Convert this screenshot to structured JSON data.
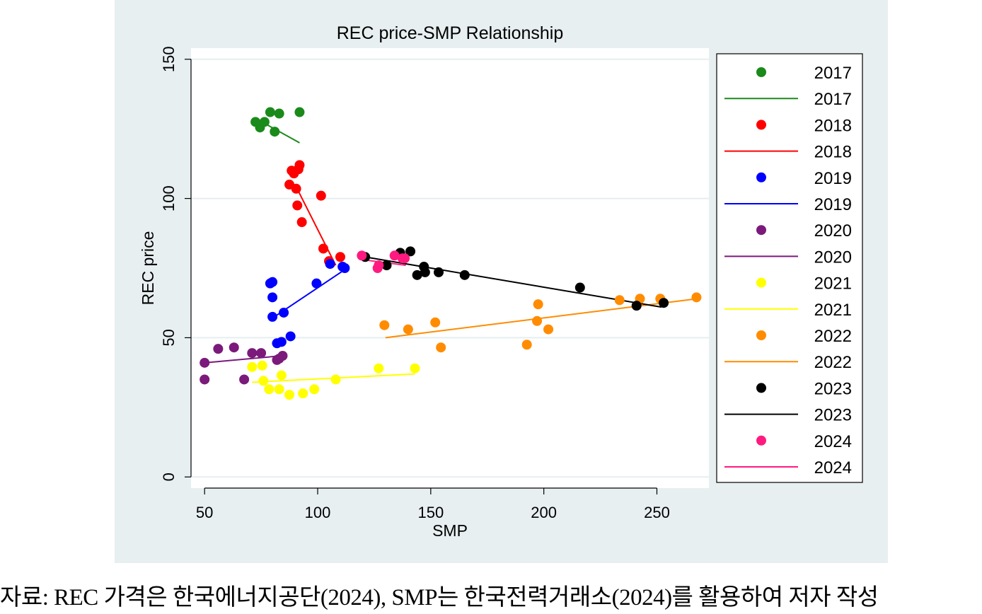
{
  "source_note": "자료: REC 가격은 한국에너지공단(2024), SMP는 한국전력거래소(2024)를 활용하여 저자 작성",
  "chart_data": {
    "type": "scatter",
    "title": "REC price-SMP Relationship",
    "xlabel": "SMP",
    "ylabel": "REC price",
    "xlim": [
      44,
      273
    ],
    "ylim": [
      -4,
      154
    ],
    "xticks": [
      50,
      100,
      150,
      200,
      250
    ],
    "yticks": [
      0,
      50,
      100,
      150
    ],
    "grid": true,
    "legend_position": "right",
    "series": [
      {
        "name": "2017",
        "color": "#1a8a1a",
        "points": [
          [
            72.5,
            127.5
          ],
          [
            74.5,
            125.5
          ],
          [
            76.5,
            127.5
          ],
          [
            79,
            131
          ],
          [
            81,
            124
          ],
          [
            83,
            130.5
          ],
          [
            92,
            131
          ]
        ],
        "fit": [
          [
            72,
            129
          ],
          [
            92,
            120
          ]
        ]
      },
      {
        "name": "2018",
        "color": "#ff0000",
        "points": [
          [
            87.5,
            105
          ],
          [
            88.5,
            110
          ],
          [
            89.5,
            109
          ],
          [
            90.5,
            103.5
          ],
          [
            91,
            97.5
          ],
          [
            91.5,
            110.5
          ],
          [
            92,
            112
          ],
          [
            93,
            91.5
          ],
          [
            101.5,
            101
          ],
          [
            102.5,
            82
          ],
          [
            105,
            77.5
          ],
          [
            110,
            79
          ]
        ],
        "fit": [
          [
            90,
            105
          ],
          [
            108,
            76
          ]
        ]
      },
      {
        "name": "2019",
        "color": "#0000ff",
        "points": [
          [
            79,
            69.5
          ],
          [
            80,
            70
          ],
          [
            80,
            64.5
          ],
          [
            80,
            57.5
          ],
          [
            82,
            48
          ],
          [
            84,
            48.5
          ],
          [
            85,
            59
          ],
          [
            88,
            50.5
          ],
          [
            99.5,
            69.5
          ],
          [
            105.5,
            76.5
          ],
          [
            111,
            75.5
          ],
          [
            112,
            75
          ]
        ],
        "fit": [
          [
            79,
            56.5
          ],
          [
            113,
            75
          ]
        ]
      },
      {
        "name": "2020",
        "color": "#7b1a7b",
        "points": [
          [
            50,
            35
          ],
          [
            50,
            41
          ],
          [
            56,
            46
          ],
          [
            63,
            46.5
          ],
          [
            67.5,
            35
          ],
          [
            71,
            44.5
          ],
          [
            75,
            44.5
          ],
          [
            82,
            42
          ],
          [
            83,
            42.5
          ],
          [
            84.5,
            43.5
          ]
        ],
        "fit": [
          [
            50,
            41
          ],
          [
            84,
            43.5
          ]
        ]
      },
      {
        "name": "2021",
        "color": "#ffff00",
        "points": [
          [
            71,
            39.5
          ],
          [
            75.5,
            40
          ],
          [
            76,
            34.5
          ],
          [
            78.5,
            31.5
          ],
          [
            83,
            31.5
          ],
          [
            84,
            36.5
          ],
          [
            87.5,
            29.5
          ],
          [
            93.5,
            30
          ],
          [
            98.5,
            31.5
          ],
          [
            108,
            35
          ],
          [
            127,
            39
          ],
          [
            143,
            39
          ]
        ],
        "fit": [
          [
            71,
            34
          ],
          [
            143,
            37
          ]
        ]
      },
      {
        "name": "2022",
        "color": "#ff8c00",
        "points": [
          [
            129.5,
            54.5
          ],
          [
            140,
            53
          ],
          [
            152,
            55.5
          ],
          [
            154.5,
            46.5
          ],
          [
            192.5,
            47.5
          ],
          [
            197,
            56
          ],
          [
            197.5,
            62
          ],
          [
            202,
            53
          ],
          [
            233.5,
            63.5
          ],
          [
            242.5,
            64
          ],
          [
            251.5,
            64
          ],
          [
            267.5,
            64.5
          ]
        ],
        "fit": [
          [
            130,
            50
          ],
          [
            268,
            64
          ]
        ]
      },
      {
        "name": "2023",
        "color": "#000000",
        "points": [
          [
            121,
            79
          ],
          [
            130.5,
            76
          ],
          [
            136.5,
            80.5
          ],
          [
            141,
            81
          ],
          [
            144,
            72.5
          ],
          [
            147,
            75.5
          ],
          [
            147.5,
            73.5
          ],
          [
            153.5,
            73.5
          ],
          [
            165,
            72.5
          ],
          [
            216,
            68
          ],
          [
            241,
            61.5
          ],
          [
            253,
            62.5
          ]
        ],
        "fit": [
          [
            121,
            79
          ],
          [
            252,
            61
          ]
        ]
      },
      {
        "name": "2024",
        "color": "#ff1a80",
        "points": [
          [
            119.5,
            79.5
          ],
          [
            126.5,
            75
          ],
          [
            127,
            76
          ],
          [
            134,
            79.5
          ],
          [
            137.5,
            78.5
          ],
          [
            138.5,
            78.5
          ]
        ],
        "fit": [
          [
            120,
            78
          ],
          [
            139,
            76
          ]
        ]
      }
    ]
  }
}
